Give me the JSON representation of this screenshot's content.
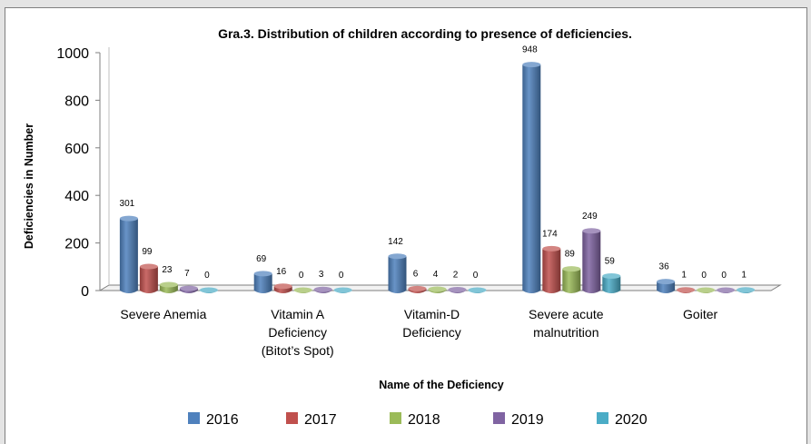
{
  "chart_data": {
    "type": "bar",
    "title": "Gra.3. Distribution of children according to presence of deficiencies.",
    "xlabel": "Name of the  Deficiency",
    "ylabel": "Deficiencies  in Number",
    "ylim": [
      0,
      1000
    ],
    "yticks": [
      "0",
      "200",
      "400",
      "600",
      "800",
      "1000"
    ],
    "categories": [
      [
        "Severe Anemia"
      ],
      [
        "Vitamin A",
        "Deficiency",
        "(Bitot’s Spot)"
      ],
      [
        "Vitamin-D",
        "Deficiency"
      ],
      [
        "Severe acute",
        "malnutrition"
      ],
      [
        "Goiter"
      ]
    ],
    "series": [
      {
        "name": "2016",
        "color": "#4f81bd",
        "values": [
          301,
          69,
          142,
          948,
          36
        ]
      },
      {
        "name": "2017",
        "color": "#c0504d",
        "values": [
          99,
          16,
          6,
          174,
          1
        ]
      },
      {
        "name": "2018",
        "color": "#9bbb59",
        "values": [
          23,
          0,
          4,
          89,
          0
        ]
      },
      {
        "name": "2019",
        "color": "#8064a2",
        "values": [
          7,
          3,
          2,
          249,
          0
        ]
      },
      {
        "name": "2020",
        "color": "#4bacc6",
        "values": [
          0,
          0,
          0,
          59,
          1
        ]
      }
    ],
    "grid": false,
    "legend_position": "bottom",
    "style": "3d-clustered-column"
  }
}
